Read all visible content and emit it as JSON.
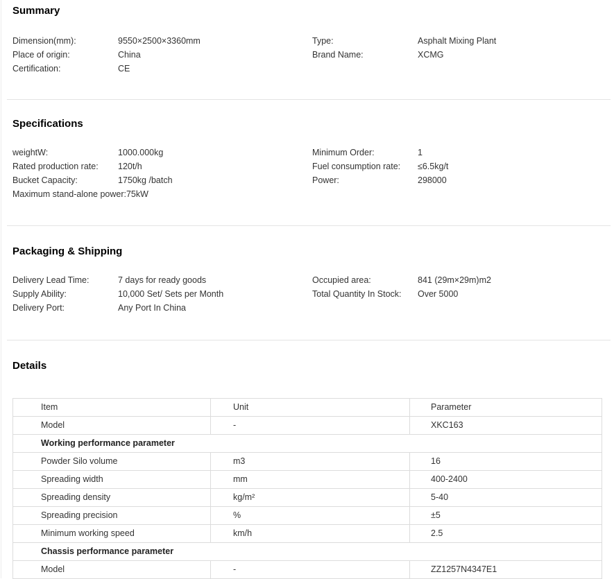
{
  "summary": {
    "title": "Summary",
    "left": [
      {
        "label": "Dimension(mm):",
        "value": "9550×2500×3360mm"
      },
      {
        "label": "Place of origin:",
        "value": "China"
      },
      {
        "label": "Certification:",
        "value": "CE"
      }
    ],
    "right": [
      {
        "label": "Type:",
        "value": "Asphalt Mixing Plant"
      },
      {
        "label": "Brand Name:",
        "value": "XCMG"
      }
    ]
  },
  "specifications": {
    "title": "Specifications",
    "left": [
      {
        "label": "weightW:",
        "value": "1000.000kg"
      },
      {
        "label": "Rated production rate:",
        "value": "120t/h"
      },
      {
        "label": "Bucket Capacity:",
        "value": "1750kg /batch"
      },
      {
        "label": "Maximum stand-alone power:",
        "value": "75kW"
      }
    ],
    "right": [
      {
        "label": "Minimum Order:",
        "value": "1"
      },
      {
        "label": "Fuel consumption rate:",
        "value": "≤6.5kg/t"
      },
      {
        "label": "Power:",
        "value": "298000"
      }
    ]
  },
  "packaging": {
    "title": "Packaging & Shipping",
    "left": [
      {
        "label": "Delivery Lead Time:",
        "value": "7 days for ready goods"
      },
      {
        "label": "Supply Ability:",
        "value": "10,000 Set/ Sets per Month"
      },
      {
        "label": "Delivery Port:",
        "value": "Any Port In China"
      }
    ],
    "right": [
      {
        "label": "Occupied area:",
        "value": "841 (29m×29m)m2"
      },
      {
        "label": "Total Quantity In Stock:",
        "value": "Over 5000"
      }
    ]
  },
  "details": {
    "title": "Details",
    "columns": [
      "Item",
      "Unit",
      "Parameter"
    ],
    "rows": [
      {
        "type": "data",
        "item": "Model",
        "unit": "-",
        "parameter": "XKC163"
      },
      {
        "type": "section",
        "item": "Working performance parameter"
      },
      {
        "type": "data",
        "item": "Powder Silo volume",
        "unit": "m3",
        "parameter": "16"
      },
      {
        "type": "data",
        "item": "Spreading width",
        "unit": "mm",
        "parameter": "400-2400"
      },
      {
        "type": "data",
        "item": "Spreading density",
        "unit": "kg/m²",
        "parameter": "5-40"
      },
      {
        "type": "data",
        "item": "Spreading precision",
        "unit": "%",
        "parameter": "±5"
      },
      {
        "type": "data",
        "item": "Minimum working speed",
        "unit": "km/h",
        "parameter": "2.5"
      },
      {
        "type": "section",
        "item": "Chassis performance parameter"
      },
      {
        "type": "data",
        "item": "Model",
        "unit": "-",
        "parameter": "ZZ1257N4347E1"
      }
    ]
  }
}
